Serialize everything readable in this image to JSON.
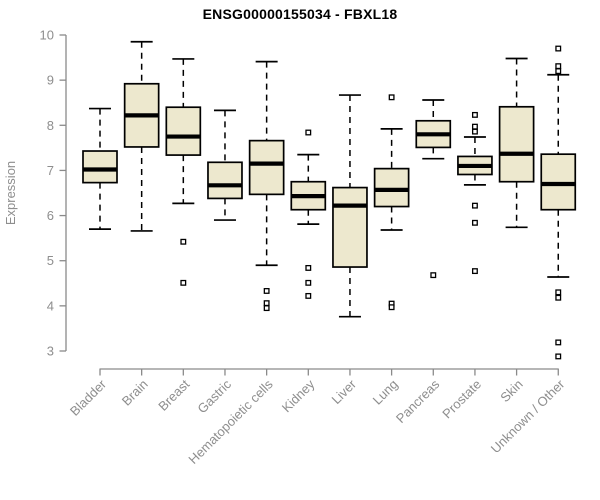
{
  "page": {
    "background": "#ffffff"
  },
  "chart_data": {
    "type": "box",
    "title": "ENSG00000155034 - FBXL18",
    "ylabel": "Expression",
    "xlabel": "",
    "ylim": [
      3,
      10
    ],
    "yticks": [
      3,
      4,
      5,
      6,
      7,
      8,
      9,
      10
    ],
    "grid": false,
    "legend": "none",
    "categories": [
      "Bladder",
      "Brain",
      "Breast",
      "Gastric",
      "Hematopoietic cells",
      "Kidney",
      "Liver",
      "Lung",
      "Pancreas",
      "Prostate",
      "Skin",
      "Unknown / Other"
    ],
    "series": [
      {
        "label": "Bladder",
        "low": 5.7,
        "q1": 6.73,
        "median": 7.02,
        "q3": 7.43,
        "high": 8.37,
        "outliers": []
      },
      {
        "label": "Brain",
        "low": 5.66,
        "q1": 7.52,
        "median": 8.22,
        "q3": 8.92,
        "high": 9.85,
        "outliers": []
      },
      {
        "label": "Breast",
        "low": 6.27,
        "q1": 7.34,
        "median": 7.75,
        "q3": 8.4,
        "high": 9.47,
        "outliers": [
          5.42,
          4.51
        ]
      },
      {
        "label": "Gastric",
        "low": 5.9,
        "q1": 6.38,
        "median": 6.67,
        "q3": 7.18,
        "high": 8.33,
        "outliers": []
      },
      {
        "label": "Hematopoietic cells",
        "low": 4.9,
        "q1": 6.47,
        "median": 7.15,
        "q3": 7.66,
        "high": 9.41,
        "outliers": [
          4.33,
          4.06,
          3.95
        ]
      },
      {
        "label": "Kidney",
        "low": 5.81,
        "q1": 6.13,
        "median": 6.43,
        "q3": 6.75,
        "high": 7.35,
        "outliers": [
          7.84,
          4.84,
          4.51,
          4.22
        ]
      },
      {
        "label": "Liver",
        "low": 3.76,
        "q1": 4.86,
        "median": 6.22,
        "q3": 6.62,
        "high": 8.67,
        "outliers": []
      },
      {
        "label": "Lung",
        "low": 5.68,
        "q1": 6.2,
        "median": 6.57,
        "q3": 7.04,
        "high": 7.92,
        "outliers": [
          8.62,
          4.05,
          3.97
        ]
      },
      {
        "label": "Pancreas",
        "low": 7.26,
        "q1": 7.51,
        "median": 7.8,
        "q3": 8.1,
        "high": 8.56,
        "outliers": [
          4.68
        ]
      },
      {
        "label": "Prostate",
        "low": 6.68,
        "q1": 6.91,
        "median": 7.1,
        "q3": 7.31,
        "high": 7.74,
        "outliers": [
          8.23,
          7.97,
          7.86,
          6.22,
          5.84,
          4.77
        ]
      },
      {
        "label": "Skin",
        "low": 5.74,
        "q1": 6.75,
        "median": 7.37,
        "q3": 8.41,
        "high": 9.48,
        "outliers": []
      },
      {
        "label": "Unknown / Other",
        "low": 4.64,
        "q1": 6.13,
        "median": 6.7,
        "q3": 7.36,
        "high": 9.12,
        "outliers": [
          9.7,
          9.31,
          9.2,
          4.3,
          4.18,
          3.19,
          2.88
        ]
      }
    ],
    "colors": {
      "box_fill": "#ede8ce",
      "box_stroke": "#000000",
      "median": "#000000",
      "whisker": "#000000",
      "axis": "#8a8a8a",
      "tick_label": "#8e8e8e",
      "title": "#000000",
      "outlier_fill": "#ffffff"
    }
  }
}
